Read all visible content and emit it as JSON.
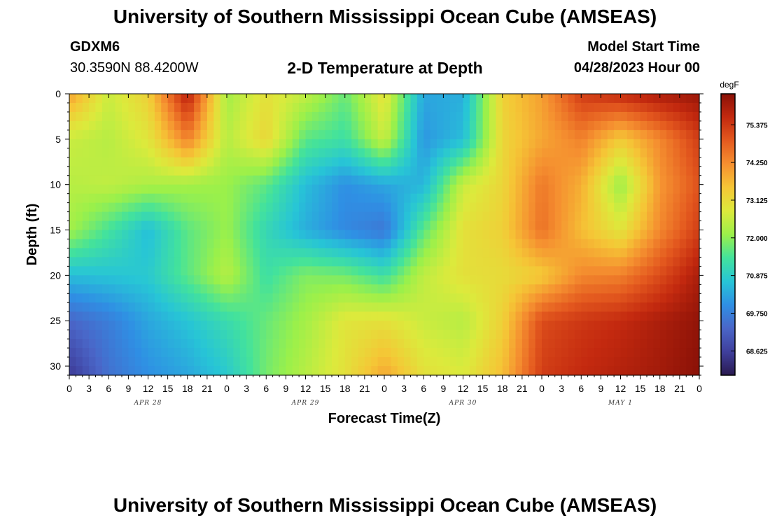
{
  "header": {
    "title": "University of Southern Mississippi Ocean Cube (AMSEAS)",
    "station_id": "GDXM6",
    "coords": "30.3590N  88.4200W",
    "plot_title": "2-D Temperature at Depth",
    "start_label": "Model Start Time",
    "start_value": "04/28/2023 Hour 00"
  },
  "footer": {
    "title": "University of Southern Mississippi Ocean Cube (AMSEAS)"
  },
  "chart_data": {
    "type": "heatmap",
    "title": "2-D Temperature at Depth",
    "xlabel": "Forecast Time(Z)",
    "ylabel": "Depth (ft)",
    "colorbar_unit": "degF",
    "colorbar_ticks": [
      "75.375",
      "74.250",
      "73.125",
      "72.000",
      "70.875",
      "69.750",
      "68.625"
    ],
    "colorbar_tick_values": [
      75.375,
      74.25,
      73.125,
      72.0,
      70.875,
      69.75,
      68.625
    ],
    "value_range": [
      67.9,
      76.3
    ],
    "x_range_hours": [
      0,
      96
    ],
    "y_range_ft": [
      0,
      31
    ],
    "x_tick_labels": [
      "0",
      "3",
      "6",
      "9",
      "12",
      "15",
      "18",
      "21",
      "0",
      "3",
      "6",
      "9",
      "12",
      "15",
      "18",
      "21",
      "0",
      "3",
      "6",
      "9",
      "12",
      "15",
      "18",
      "21",
      "0",
      "3",
      "6",
      "9",
      "12",
      "15",
      "18",
      "21",
      "0"
    ],
    "y_ticks": [
      0,
      5,
      10,
      15,
      20,
      25,
      30
    ],
    "y_tick_labels": [
      "0",
      "5",
      "10",
      "15",
      "20",
      "25",
      "30"
    ],
    "day_labels": [
      {
        "text": "APR 28",
        "hour": 12
      },
      {
        "text": "APR 29",
        "hour": 36
      },
      {
        "text": "APR 30",
        "hour": 60
      },
      {
        "text": "MAY 1",
        "hour": 84
      }
    ],
    "grid_times_hours": [
      0,
      6,
      12,
      18,
      24,
      30,
      36,
      42,
      48,
      54,
      60,
      66,
      72,
      78,
      84,
      90,
      96
    ],
    "grid_depths_ft": [
      0,
      5,
      10,
      15,
      20,
      25,
      31
    ],
    "values_degF": [
      [
        74.0,
        72.6,
        73.3,
        75.8,
        72.2,
        73.0,
        72.5,
        71.7,
        73.0,
        70.3,
        70.4,
        73.3,
        74.0,
        75.3,
        75.6,
        75.9,
        76.1
      ],
      [
        72.6,
        72.4,
        72.9,
        74.4,
        72.4,
        73.2,
        71.6,
        71.3,
        72.6,
        70.1,
        70.6,
        73.2,
        73.9,
        74.4,
        73.4,
        74.3,
        75.3
      ],
      [
        72.4,
        72.5,
        72.3,
        72.2,
        72.1,
        71.6,
        70.6,
        70.0,
        70.3,
        70.5,
        72.6,
        73.2,
        74.5,
        73.8,
        72.1,
        74.1,
        75.0
      ],
      [
        72.2,
        71.4,
        70.6,
        71.6,
        72.1,
        71.1,
        70.4,
        69.9,
        69.6,
        71.6,
        73.0,
        73.3,
        74.6,
        73.6,
        72.9,
        74.3,
        75.3
      ],
      [
        70.6,
        70.7,
        70.8,
        71.6,
        72.4,
        71.3,
        71.9,
        71.8,
        71.3,
        72.5,
        73.0,
        73.1,
        73.4,
        74.3,
        74.4,
        75.1,
        75.9
      ],
      [
        69.3,
        69.7,
        70.3,
        70.7,
        71.2,
        71.7,
        72.2,
        72.9,
        73.0,
        72.6,
        72.4,
        73.3,
        75.1,
        75.4,
        75.6,
        75.9,
        76.2
      ],
      [
        68.5,
        69.5,
        70.0,
        70.3,
        70.8,
        71.8,
        72.4,
        73.0,
        73.9,
        73.0,
        72.8,
        73.6,
        75.3,
        75.6,
        75.8,
        76.0,
        76.3
      ]
    ],
    "colormap": [
      "#2a1a50",
      "#3f3f9c",
      "#4a66c8",
      "#2f8fe4",
      "#27c5d6",
      "#43e29c",
      "#9bf04a",
      "#dcea3c",
      "#f5c636",
      "#f59030",
      "#e45a1f",
      "#c3290f",
      "#8a1107"
    ]
  }
}
